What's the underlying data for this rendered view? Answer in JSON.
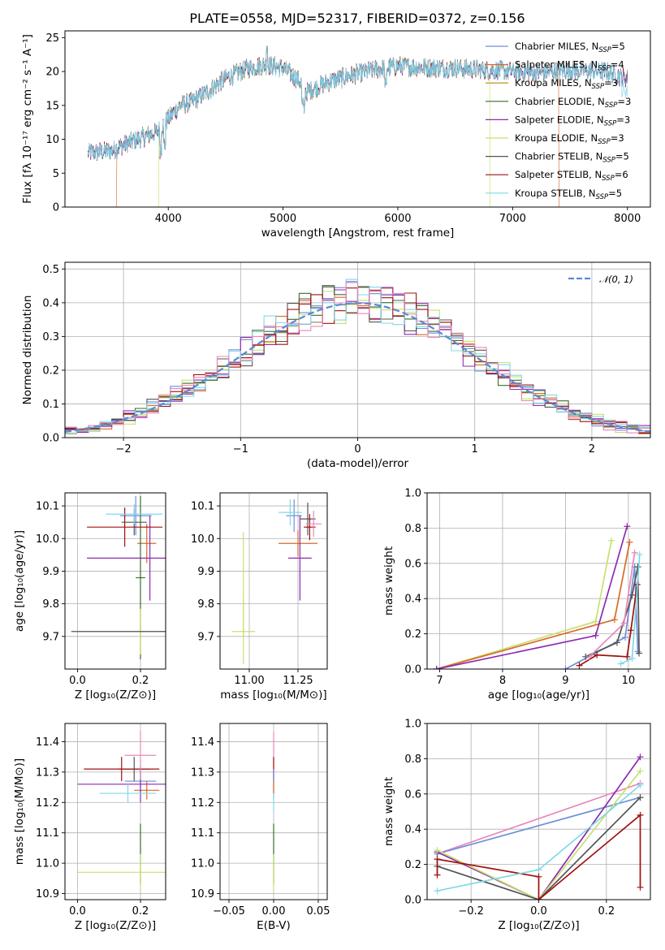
{
  "figure": {
    "title": "PLATE=0558, MJD=52317, FIBERID=0372, z=0.156"
  },
  "colors": {
    "Chabrier MILES": "#6f8fd8",
    "Salpeter MILES": "#d86a2a",
    "Kroupa MILES": "#b8860b",
    "Chabrier ELODIE": "#3a6e2a",
    "Salpeter ELODIE": "#8e2ab0",
    "Kroupa ELODIE": "#c8e070",
    "Chabrier STELIB": "#555555",
    "Salpeter STELIB": "#a01010",
    "Kroupa STELIB": "#80d8e8",
    "extra_pink": "#e888b8",
    "gauss": "#5b8ad8"
  },
  "chart_data": [
    {
      "id": "spectrum",
      "type": "line",
      "xlabel": "wavelength [Angstrom, rest frame]",
      "ylabel": "Flux [fλ 10⁻¹⁷ erg cm⁻² s⁻¹ A⁻¹]",
      "xlim": [
        3100,
        8200
      ],
      "ylim": [
        0,
        26
      ],
      "xticks": [
        4000,
        5000,
        6000,
        7000,
        8000
      ],
      "yticks": [
        0,
        5,
        10,
        15,
        20,
        25
      ],
      "grid": false,
      "legend_position": "top-right",
      "legend": [
        {
          "label": "Chabrier MILES, N",
          "sub": "SSP",
          "suffix": "=5",
          "series": "Chabrier MILES"
        },
        {
          "label": "Salpeter MILES, N",
          "sub": "SSP",
          "suffix": "=4",
          "series": "Salpeter MILES"
        },
        {
          "label": "Kroupa MILES, N",
          "sub": "SSP",
          "suffix": "=3",
          "series": "Kroupa MILES"
        },
        {
          "label": "Chabrier ELODIE, N",
          "sub": "SSP",
          "suffix": "=3",
          "series": "Chabrier ELODIE"
        },
        {
          "label": "Salpeter ELODIE, N",
          "sub": "SSP",
          "suffix": "=3",
          "series": "Salpeter ELODIE"
        },
        {
          "label": "Kroupa ELODIE, N",
          "sub": "SSP",
          "suffix": "=3",
          "series": "Kroupa ELODIE"
        },
        {
          "label": "Chabrier STELIB, N",
          "sub": "SSP",
          "suffix": "=5",
          "series": "Chabrier STELIB"
        },
        {
          "label": "Salpeter STELIB, N",
          "sub": "SSP",
          "suffix": "=6",
          "series": "Salpeter STELIB"
        },
        {
          "label": "Kroupa STELIB, N",
          "sub": "SSP",
          "suffix": "=5",
          "series": "Kroupa STELIB"
        }
      ],
      "continuum": {
        "x": [
          3300,
          3500,
          3700,
          3900,
          4000,
          4100,
          4200,
          4300,
          4500,
          4700,
          4850,
          5000,
          5150,
          5200,
          5400,
          5600,
          5800,
          6000,
          6200,
          6500,
          6800,
          7000,
          7200,
          7500,
          7800,
          8000
        ],
        "y": [
          8.0,
          8.3,
          9.8,
          11.0,
          13.0,
          15.0,
          15.5,
          16.5,
          19.0,
          20.5,
          21.0,
          20.5,
          18.5,
          17.0,
          18.5,
          19.5,
          20.3,
          20.8,
          20.6,
          20.5,
          20.2,
          20.0,
          19.8,
          20.2,
          20.0,
          19.0
        ]
      },
      "cutoffs": [
        {
          "series": "Salpeter MILES",
          "start": 3550,
          "end": 7400
        },
        {
          "series": "Kroupa ELODIE",
          "start": 3920,
          "end": 6800
        }
      ]
    },
    {
      "id": "residual_hist",
      "type": "histogram",
      "xlabel": "(data-model)/error",
      "ylabel": "Normed distribution",
      "xlim": [
        -2.5,
        2.5
      ],
      "ylim": [
        0,
        0.52
      ],
      "xticks": [
        -2,
        -1,
        0,
        1,
        2
      ],
      "yticks": [
        0.0,
        0.1,
        0.2,
        0.3,
        0.4,
        0.5
      ],
      "grid": true,
      "legend_position": "top-right",
      "legend": [
        {
          "label": "𝒩(0, 1)",
          "series": "gauss"
        }
      ],
      "bin_width": 0.1,
      "series": [
        "Chabrier MILES",
        "Salpeter MILES",
        "Chabrier ELODIE",
        "Salpeter ELODIE",
        "Kroupa ELODIE",
        "Chabrier STELIB",
        "Salpeter STELIB",
        "Kroupa STELIB",
        "extra_pink"
      ]
    },
    {
      "id": "age_vs_Z",
      "type": "errorbar",
      "xlabel": "Z [log₁₀(Z/Z⊙)]",
      "ylabel": "age  [log₁₀(age/yr)]",
      "xlim": [
        -0.04,
        0.28
      ],
      "ylim": [
        9.6,
        10.14
      ],
      "xticks": [
        0.0,
        0.2
      ],
      "yticks": [
        9.7,
        9.8,
        9.9,
        10.0,
        10.1
      ],
      "grid": true,
      "points": [
        {
          "series": "Chabrier MILES",
          "x": 0.185,
          "y": 10.07,
          "xerr": 0.05,
          "yerr": 0.06
        },
        {
          "series": "Salpeter MILES",
          "x": 0.22,
          "y": 9.985,
          "xerr": 0.03,
          "yerr": 0.06
        },
        {
          "series": "Chabrier ELODIE",
          "x": 0.2,
          "y": 9.88,
          "xerr": 0.015,
          "yerr": 0.25
        },
        {
          "series": "Salpeter ELODIE",
          "x": 0.23,
          "y": 9.94,
          "xerr": 0.2,
          "yerr": 0.13
        },
        {
          "series": "Kroupa ELODIE",
          "x": 0.2,
          "y": 9.715,
          "xerr": 0.2,
          "yerr": 0.07
        },
        {
          "series": "Chabrier STELIB",
          "x": 0.18,
          "y": 10.05,
          "xerr": 0.04,
          "yerr": 0.04
        },
        {
          "series": "Salpeter STELIB",
          "x": 0.15,
          "y": 10.035,
          "xerr": 0.12,
          "yerr": 0.06
        },
        {
          "series": "Kroupa STELIB",
          "x": 0.18,
          "y": 10.075,
          "xerr": 0.09,
          "yerr": 0.03
        },
        {
          "series": "Chabrier STELIB",
          "x": 0.2,
          "y": 9.715,
          "xerr": 0.22,
          "yerr": 0.0
        }
      ]
    },
    {
      "id": "age_vs_mass",
      "type": "errorbar",
      "xlabel": "mass [log₁₀(M/M⊙)]",
      "ylabel": "",
      "xlim": [
        10.85,
        11.4
      ],
      "ylim": [
        9.6,
        10.14
      ],
      "xticks": [
        11.0,
        11.25
      ],
      "yticks": [
        9.7,
        9.8,
        9.9,
        10.0,
        10.1
      ],
      "grid": true,
      "points": [
        {
          "series": "Chabrier MILES",
          "x": 11.23,
          "y": 10.07,
          "xerr": 0.04,
          "yerr": 0.05
        },
        {
          "series": "Salpeter MILES",
          "x": 11.25,
          "y": 9.985,
          "xerr": 0.1,
          "yerr": 0.04
        },
        {
          "series": "Salpeter ELODIE",
          "x": 11.26,
          "y": 9.94,
          "xerr": 0.06,
          "yerr": 0.13
        },
        {
          "series": "Kroupa ELODIE",
          "x": 10.97,
          "y": 9.715,
          "xerr": 0.06,
          "yerr": 0.1
        },
        {
          "series": "Kroupa ELODIE",
          "x": 10.97,
          "y": 9.86,
          "xerr": 0.0,
          "yerr": 0.16
        },
        {
          "series": "Chabrier STELIB",
          "x": 11.3,
          "y": 10.06,
          "xerr": 0.04,
          "yerr": 0.05
        },
        {
          "series": "Salpeter STELIB",
          "x": 11.31,
          "y": 10.035,
          "xerr": 0.03,
          "yerr": 0.04
        },
        {
          "series": "Kroupa STELIB",
          "x": 11.21,
          "y": 10.08,
          "xerr": 0.06,
          "yerr": 0.04
        },
        {
          "series": "extra_pink",
          "x": 11.33,
          "y": 10.045,
          "xerr": 0.04,
          "yerr": 0.04
        }
      ]
    },
    {
      "id": "weight_vs_age",
      "type": "line",
      "xlabel": "age  [log₁₀(age/yr)]",
      "ylabel": "mass weight",
      "xlim": [
        6.8,
        10.35
      ],
      "ylim": [
        0,
        1.0
      ],
      "xticks": [
        7,
        8,
        9,
        10
      ],
      "yticks": [
        0.0,
        0.2,
        0.4,
        0.6,
        0.8,
        1.0
      ],
      "grid": true,
      "series": [
        {
          "name": "Kroupa ELODIE",
          "x": [
            6.95,
            9.48,
            9.73
          ],
          "y": [
            0.0,
            0.27,
            0.73
          ]
        },
        {
          "name": "Salpeter MILES",
          "x": [
            6.95,
            9.78,
            10.02
          ],
          "y": [
            0.0,
            0.28,
            0.72
          ]
        },
        {
          "name": "Salpeter ELODIE",
          "x": [
            6.95,
            9.48,
            9.98
          ],
          "y": [
            0.0,
            0.19,
            0.81
          ]
        },
        {
          "name": "Chabrier MILES",
          "x": [
            9.0,
            9.95,
            10.1,
            10.15
          ],
          "y": [
            0.0,
            0.18,
            0.58,
            0.1
          ]
        },
        {
          "name": "Chabrier STELIB",
          "x": [
            9.32,
            9.82,
            10.06,
            10.15,
            10.17
          ],
          "y": [
            0.07,
            0.15,
            0.42,
            0.58,
            0.09
          ]
        },
        {
          "name": "Salpeter STELIB",
          "x": [
            9.22,
            9.5,
            9.98,
            10.04,
            10.14
          ],
          "y": [
            0.02,
            0.08,
            0.07,
            0.22,
            0.48
          ]
        },
        {
          "name": "extra_pink",
          "x": [
            9.38,
            9.93,
            10.1
          ],
          "y": [
            0.07,
            0.26,
            0.66
          ]
        },
        {
          "name": "Kroupa STELIB",
          "x": [
            9.88,
            10.06,
            10.18
          ],
          "y": [
            0.03,
            0.06,
            0.65
          ]
        }
      ]
    },
    {
      "id": "mass_vs_Z",
      "type": "errorbar",
      "xlabel": "Z [log₁₀(Z/Z⊙)]",
      "ylabel": "mass [log₁₀(M/M⊙)]",
      "xlim": [
        -0.04,
        0.28
      ],
      "ylim": [
        10.88,
        11.46
      ],
      "xticks": [
        0.0,
        0.2
      ],
      "yticks": [
        10.9,
        11.0,
        11.1,
        11.2,
        11.3,
        11.4
      ],
      "grid": true,
      "points": [
        {
          "series": "Chabrier MILES",
          "x": 0.2,
          "y": 11.27,
          "xerr": 0.05,
          "yerr": 0.04
        },
        {
          "series": "Salpeter MILES",
          "x": 0.22,
          "y": 11.24,
          "xerr": 0.04,
          "yerr": 0.03
        },
        {
          "series": "Chabrier ELODIE",
          "x": 0.2,
          "y": 11.03,
          "xerr": 0.0,
          "yerr": 0.1
        },
        {
          "series": "Salpeter ELODIE",
          "x": 0.2,
          "y": 11.26,
          "xerr": 0.2,
          "yerr": 0.06
        },
        {
          "series": "Kroupa ELODIE",
          "x": 0.2,
          "y": 10.97,
          "xerr": 0.2,
          "yerr": 0.06
        },
        {
          "series": "Chabrier STELIB",
          "x": 0.18,
          "y": 11.31,
          "xerr": 0.05,
          "yerr": 0.04
        },
        {
          "series": "Salpeter STELIB",
          "x": 0.14,
          "y": 11.31,
          "xerr": 0.12,
          "yerr": 0.04
        },
        {
          "series": "Kroupa STELIB",
          "x": 0.16,
          "y": 11.23,
          "xerr": 0.09,
          "yerr": 0.03
        },
        {
          "series": "extra_pink",
          "x": 0.2,
          "y": 11.355,
          "xerr": 0.05,
          "yerr": 0.08
        }
      ]
    },
    {
      "id": "mass_vs_ebv",
      "type": "errorbar",
      "xlabel": "E(B-V)",
      "ylabel": "",
      "xlim": [
        -0.06,
        0.06
      ],
      "ylim": [
        10.88,
        11.46
      ],
      "xticks": [
        -0.05,
        0.0,
        0.05
      ],
      "yticks": [
        10.9,
        11.0,
        11.1,
        11.2,
        11.3,
        11.4
      ],
      "grid": true,
      "points": [
        {
          "series": "extra_pink",
          "x": 0.0,
          "y": 11.35,
          "xerr": 0.0,
          "yerr": 0.08
        },
        {
          "series": "Salpeter STELIB",
          "x": 0.0,
          "y": 11.31,
          "xerr": 0.0,
          "yerr": 0.04
        },
        {
          "series": "Chabrier MILES",
          "x": 0.0,
          "y": 11.27,
          "xerr": 0.0,
          "yerr": 0.04
        },
        {
          "series": "Salpeter MILES",
          "x": 0.0,
          "y": 11.24,
          "xerr": 0.0,
          "yerr": 0.03
        },
        {
          "series": "Kroupa STELIB",
          "x": 0.0,
          "y": 11.2,
          "xerr": 0.0,
          "yerr": 0.03
        },
        {
          "series": "Chabrier ELODIE",
          "x": 0.0,
          "y": 11.03,
          "xerr": 0.0,
          "yerr": 0.1
        },
        {
          "series": "Kroupa ELODIE",
          "x": 0.0,
          "y": 10.97,
          "xerr": 0.0,
          "yerr": 0.06
        }
      ]
    },
    {
      "id": "weight_vs_Z",
      "type": "line",
      "xlabel": "Z [log₁₀(Z/Z⊙)]",
      "ylabel": "mass weight",
      "xlim": [
        -0.33,
        0.33
      ],
      "ylim": [
        0,
        1.0
      ],
      "xticks": [
        -0.2,
        0.0,
        0.2
      ],
      "yticks": [
        0.0,
        0.2,
        0.4,
        0.6,
        0.8,
        1.0
      ],
      "grid": true,
      "series": [
        {
          "name": "extra_pink",
          "x": [
            -0.3,
            0.3
          ],
          "y": [
            0.26,
            0.66
          ]
        },
        {
          "name": "Chabrier MILES",
          "x": [
            -0.3,
            0.3
          ],
          "y": [
            0.26,
            0.58
          ]
        },
        {
          "name": "Salpeter ELODIE",
          "x": [
            -0.3,
            0.0,
            0.3
          ],
          "y": [
            0.27,
            0.0,
            0.81
          ]
        },
        {
          "name": "Kroupa ELODIE",
          "x": [
            -0.3,
            0.0,
            0.3
          ],
          "y": [
            0.28,
            0.0,
            0.73
          ]
        },
        {
          "name": "Chabrier STELIB",
          "x": [
            -0.3,
            0.0,
            0.3
          ],
          "y": [
            0.19,
            0.0,
            0.58
          ]
        },
        {
          "name": "Salpeter STELIB",
          "x": [
            -0.3,
            -0.3,
            0.0,
            0.0,
            0.3,
            0.3
          ],
          "y": [
            0.14,
            0.23,
            0.13,
            0.0,
            0.48,
            0.07
          ]
        },
        {
          "name": "Kroupa STELIB",
          "x": [
            -0.3,
            0.0,
            0.3
          ],
          "y": [
            0.05,
            0.17,
            0.65
          ]
        }
      ]
    }
  ]
}
